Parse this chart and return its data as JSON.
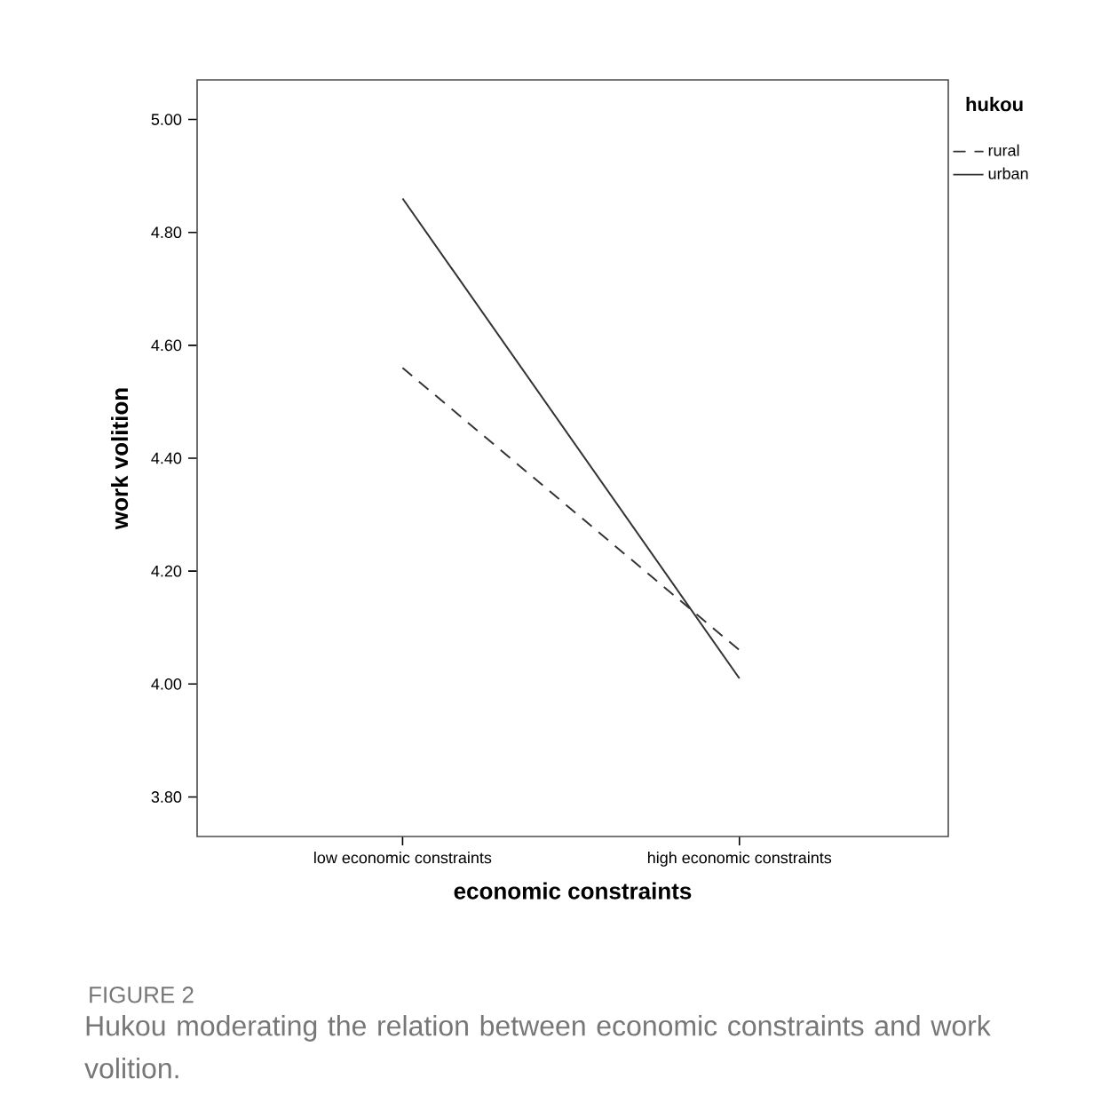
{
  "chart_data": {
    "type": "line",
    "categories": [
      "low economic constraints",
      "high economic constraints"
    ],
    "xlabel": "economic constraints",
    "ylabel": "work volition",
    "legend_title": "hukou",
    "series": [
      {
        "name": "rural",
        "color": "#333333",
        "line_style": "dashed",
        "values": [
          4.56,
          4.06
        ]
      },
      {
        "name": "urban",
        "color": "#333333",
        "line_style": "solid",
        "values": [
          4.86,
          4.01
        ]
      }
    ],
    "ylim": [
      3.73,
      5.07
    ],
    "yticks": [
      {
        "value": 3.8,
        "label": "3.80"
      },
      {
        "value": 4.0,
        "label": "4.00"
      },
      {
        "value": 4.2,
        "label": "4.20"
      },
      {
        "value": 4.4,
        "label": "4.40"
      },
      {
        "value": 4.6,
        "label": "4.60"
      },
      {
        "value": 4.8,
        "label": "4.80"
      },
      {
        "value": 5.0,
        "label": "5.00"
      }
    ],
    "grid": false,
    "legend": "top right",
    "marker": "none",
    "annotations": [
      "FIGURE 2",
      "Hukou moderating the relation between economic constraints and work volition."
    ]
  }
}
